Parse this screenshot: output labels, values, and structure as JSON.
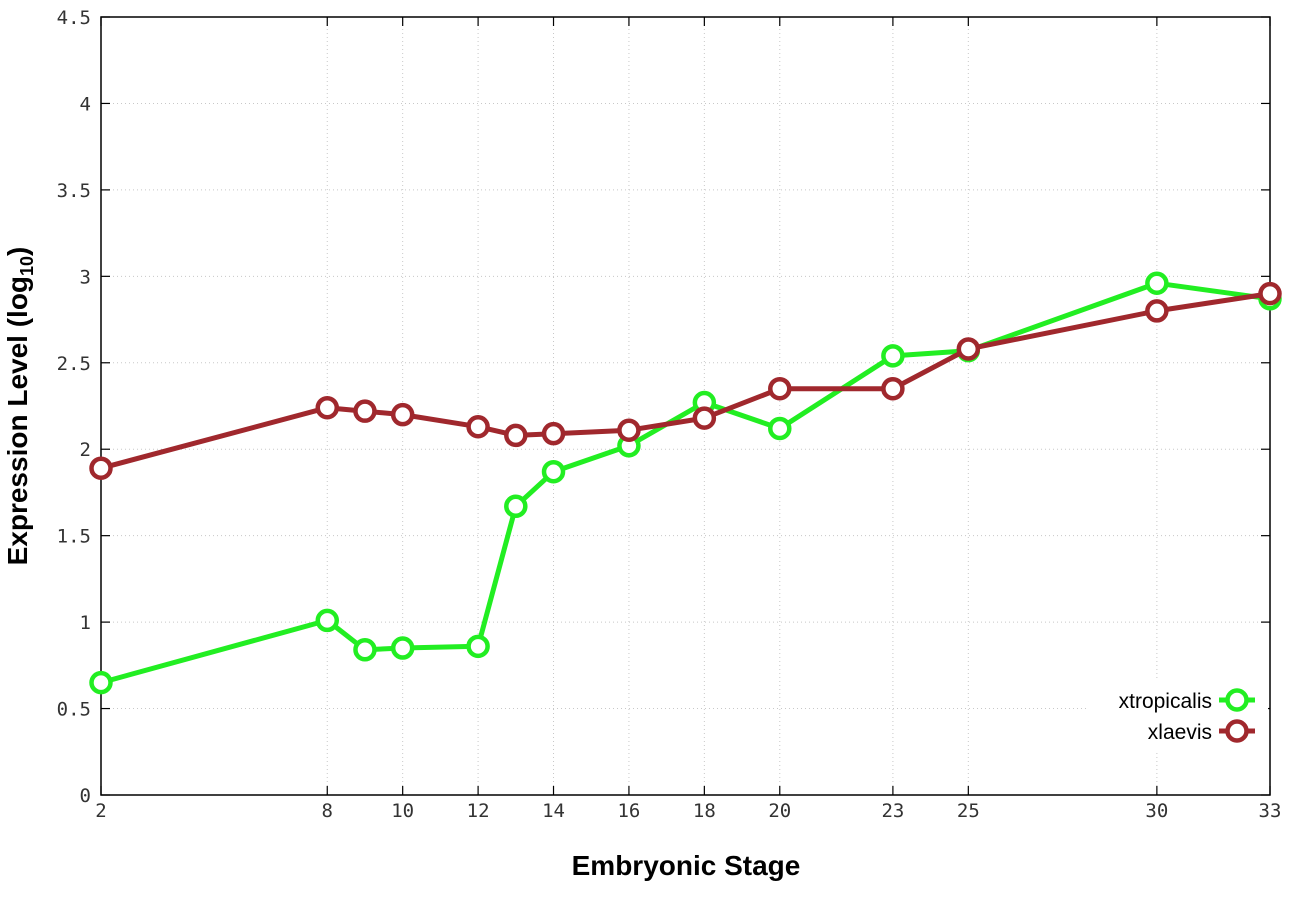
{
  "chart_data": {
    "type": "line",
    "xlabel": "Embryonic Stage",
    "ylabel_main": "Expression Level (log",
    "ylabel_sub": "10",
    "ylabel_close": ")",
    "xlim": [
      2,
      33
    ],
    "ylim": [
      0,
      4.5
    ],
    "x_ticks": [
      2,
      8,
      10,
      12,
      14,
      16,
      18,
      20,
      23,
      25,
      30,
      33
    ],
    "y_ticks": [
      0,
      0.5,
      1,
      1.5,
      2,
      2.5,
      3,
      3.5,
      4,
      4.5
    ],
    "y_tick_labels": [
      "0",
      "0.5",
      "1",
      "1.5",
      "2",
      "2.5",
      "3",
      "3.5",
      "4",
      "4.5"
    ],
    "grid": true,
    "legend_position": "bottom-right",
    "x": [
      2,
      8,
      9,
      10,
      12,
      13,
      14,
      16,
      18,
      20,
      23,
      25,
      30,
      33
    ],
    "series": [
      {
        "name": "xtropicalis",
        "color": "#22ee22",
        "values": [
          0.65,
          1.01,
          0.84,
          0.85,
          0.86,
          1.67,
          1.87,
          2.02,
          2.27,
          2.12,
          2.54,
          2.57,
          2.96,
          2.87
        ]
      },
      {
        "name": "xlaevis",
        "color": "#a0282d",
        "values": [
          1.89,
          2.24,
          2.22,
          2.2,
          2.13,
          2.08,
          2.09,
          2.11,
          2.18,
          2.35,
          2.35,
          2.58,
          2.8,
          2.9
        ]
      }
    ]
  }
}
